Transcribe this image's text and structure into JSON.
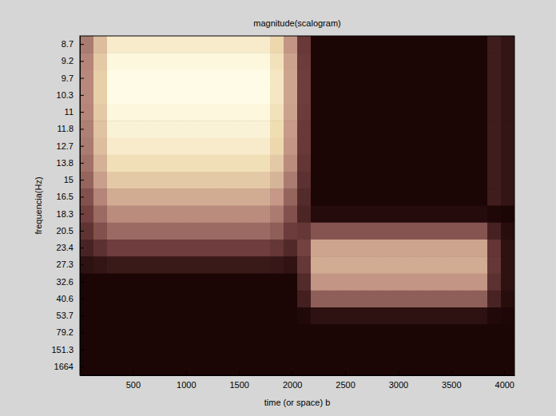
{
  "chart_data": {
    "type": "heatmap",
    "title": "magnitude(scalogram)",
    "x_label": "time (or space) b",
    "y_label": "frequencia(Hz)",
    "grid": false,
    "xlim": [
      0,
      4096
    ],
    "xticks": [
      500,
      1000,
      1500,
      2000,
      2500,
      3000,
      3500,
      4000
    ],
    "x": [
      0,
      128,
      256,
      384,
      512,
      640,
      768,
      896,
      1024,
      1152,
      1280,
      1408,
      1536,
      1664,
      1792,
      1920,
      2048,
      2176,
      2304,
      2432,
      2560,
      2688,
      2816,
      2944,
      3072,
      3200,
      3328,
      3456,
      3584,
      3712,
      3840,
      3968,
      4096
    ],
    "y": [
      8.7,
      9.2,
      9.7,
      10.3,
      11,
      11.8,
      12.7,
      13.8,
      15,
      16.5,
      18.3,
      20.5,
      23.4,
      27.3,
      32.6,
      40.6,
      53.7,
      79.2,
      151.3,
      1664
    ],
    "z": [
      [
        0.47,
        0.68,
        0.85,
        0.85,
        0.85,
        0.85,
        0.85,
        0.85,
        0.85,
        0.85,
        0.85,
        0.85,
        0.85,
        0.85,
        0.77,
        0.55,
        0.26,
        0,
        0,
        0,
        0,
        0,
        0,
        0,
        0,
        0,
        0,
        0,
        0,
        0,
        0.12,
        0.08
      ],
      [
        0.5,
        0.72,
        0.9,
        0.9,
        0.9,
        0.9,
        0.9,
        0.9,
        0.9,
        0.9,
        0.9,
        0.9,
        0.9,
        0.9,
        0.81,
        0.59,
        0.27,
        0,
        0,
        0,
        0,
        0,
        0,
        0,
        0,
        0,
        0,
        0,
        0,
        0,
        0.12,
        0.08
      ],
      [
        0.51,
        0.74,
        0.92,
        0.92,
        0.92,
        0.92,
        0.92,
        0.92,
        0.92,
        0.92,
        0.92,
        0.92,
        0.92,
        0.92,
        0.83,
        0.6,
        0.28,
        0,
        0,
        0,
        0,
        0,
        0,
        0,
        0,
        0,
        0,
        0,
        0,
        0,
        0.12,
        0.08
      ],
      [
        0.51,
        0.74,
        0.92,
        0.92,
        0.92,
        0.92,
        0.92,
        0.92,
        0.92,
        0.92,
        0.92,
        0.92,
        0.92,
        0.92,
        0.83,
        0.6,
        0.28,
        0,
        0,
        0,
        0,
        0,
        0,
        0,
        0,
        0,
        0,
        0,
        0,
        0,
        0.12,
        0.08
      ],
      [
        0.5,
        0.72,
        0.9,
        0.9,
        0.9,
        0.9,
        0.9,
        0.9,
        0.9,
        0.9,
        0.9,
        0.9,
        0.9,
        0.9,
        0.81,
        0.59,
        0.27,
        0,
        0,
        0,
        0,
        0,
        0,
        0,
        0,
        0,
        0,
        0,
        0,
        0,
        0.12,
        0.08
      ],
      [
        0.48,
        0.7,
        0.88,
        0.88,
        0.88,
        0.88,
        0.88,
        0.88,
        0.88,
        0.88,
        0.88,
        0.88,
        0.88,
        0.88,
        0.79,
        0.57,
        0.26,
        0,
        0,
        0,
        0,
        0,
        0,
        0,
        0,
        0,
        0,
        0,
        0,
        0,
        0.12,
        0.08
      ],
      [
        0.47,
        0.68,
        0.85,
        0.85,
        0.85,
        0.85,
        0.85,
        0.85,
        0.85,
        0.85,
        0.85,
        0.85,
        0.85,
        0.85,
        0.77,
        0.55,
        0.26,
        0,
        0,
        0,
        0,
        0,
        0,
        0,
        0,
        0,
        0,
        0,
        0,
        0,
        0.12,
        0.08
      ],
      [
        0.44,
        0.64,
        0.8,
        0.8,
        0.8,
        0.8,
        0.8,
        0.8,
        0.8,
        0.8,
        0.8,
        0.8,
        0.8,
        0.8,
        0.72,
        0.52,
        0.24,
        0,
        0,
        0,
        0,
        0,
        0,
        0,
        0,
        0,
        0,
        0,
        0,
        0,
        0.12,
        0.08
      ],
      [
        0.4,
        0.58,
        0.72,
        0.72,
        0.72,
        0.72,
        0.72,
        0.72,
        0.72,
        0.72,
        0.72,
        0.72,
        0.72,
        0.72,
        0.65,
        0.47,
        0.22,
        0,
        0,
        0,
        0,
        0,
        0,
        0,
        0,
        0,
        0,
        0,
        0,
        0,
        0.12,
        0.08
      ],
      [
        0.34,
        0.5,
        0.62,
        0.62,
        0.62,
        0.62,
        0.62,
        0.62,
        0.62,
        0.62,
        0.62,
        0.62,
        0.62,
        0.62,
        0.56,
        0.4,
        0.19,
        0,
        0,
        0,
        0,
        0,
        0,
        0,
        0,
        0,
        0,
        0,
        0,
        0,
        0.12,
        0.08
      ],
      [
        0.29,
        0.42,
        0.52,
        0.52,
        0.52,
        0.52,
        0.52,
        0.52,
        0.52,
        0.52,
        0.52,
        0.52,
        0.52,
        0.52,
        0.47,
        0.34,
        0.16,
        0.03,
        0.03,
        0.03,
        0.03,
        0.03,
        0.03,
        0.03,
        0.03,
        0.03,
        0.03,
        0.03,
        0.03,
        0.03,
        0.01,
        0
      ],
      [
        0.23,
        0.34,
        0.42,
        0.42,
        0.42,
        0.42,
        0.42,
        0.42,
        0.42,
        0.42,
        0.42,
        0.42,
        0.42,
        0.42,
        0.38,
        0.27,
        0.25,
        0.35,
        0.35,
        0.35,
        0.35,
        0.35,
        0.35,
        0.35,
        0.35,
        0.35,
        0.35,
        0.35,
        0.35,
        0.35,
        0.14,
        0.04
      ],
      [
        0.15,
        0.22,
        0.28,
        0.28,
        0.28,
        0.28,
        0.28,
        0.28,
        0.28,
        0.28,
        0.28,
        0.28,
        0.28,
        0.28,
        0.25,
        0.18,
        0.29,
        0.6,
        0.6,
        0.6,
        0.6,
        0.6,
        0.6,
        0.6,
        0.6,
        0.6,
        0.6,
        0.6,
        0.6,
        0.6,
        0.24,
        0.06
      ],
      [
        0.06,
        0.08,
        0.1,
        0.1,
        0.1,
        0.1,
        0.1,
        0.1,
        0.1,
        0.1,
        0.1,
        0.1,
        0.1,
        0.1,
        0.09,
        0.07,
        0.25,
        0.62,
        0.62,
        0.62,
        0.62,
        0.62,
        0.62,
        0.62,
        0.62,
        0.62,
        0.62,
        0.62,
        0.62,
        0.62,
        0.25,
        0.06
      ],
      [
        0,
        0,
        0,
        0,
        0,
        0,
        0,
        0,
        0,
        0,
        0,
        0,
        0,
        0,
        0,
        0,
        0.19,
        0.55,
        0.55,
        0.55,
        0.55,
        0.55,
        0.55,
        0.55,
        0.55,
        0.55,
        0.55,
        0.55,
        0.55,
        0.55,
        0.22,
        0.06
      ],
      [
        0,
        0,
        0,
        0,
        0,
        0,
        0,
        0,
        0,
        0,
        0,
        0,
        0,
        0,
        0,
        0,
        0.13,
        0.38,
        0.38,
        0.38,
        0.38,
        0.38,
        0.38,
        0.38,
        0.38,
        0.38,
        0.38,
        0.38,
        0.38,
        0.38,
        0.15,
        0.04
      ],
      [
        0,
        0,
        0,
        0,
        0,
        0,
        0,
        0,
        0,
        0,
        0,
        0,
        0,
        0,
        0,
        0,
        0.02,
        0.06,
        0.06,
        0.06,
        0.06,
        0.06,
        0.06,
        0.06,
        0.06,
        0.06,
        0.06,
        0.06,
        0.06,
        0.06,
        0.02,
        0.01
      ],
      [
        0,
        0,
        0,
        0,
        0,
        0,
        0,
        0,
        0,
        0,
        0,
        0,
        0,
        0,
        0,
        0,
        0,
        0,
        0,
        0,
        0,
        0,
        0,
        0,
        0,
        0,
        0,
        0,
        0,
        0,
        0,
        0
      ],
      [
        0,
        0,
        0,
        0,
        0,
        0,
        0,
        0,
        0,
        0,
        0,
        0,
        0,
        0,
        0,
        0,
        0,
        0,
        0,
        0,
        0,
        0,
        0,
        0,
        0,
        0,
        0,
        0,
        0,
        0,
        0,
        0
      ],
      [
        0,
        0,
        0,
        0,
        0,
        0,
        0,
        0,
        0,
        0,
        0,
        0,
        0,
        0,
        0,
        0,
        0,
        0,
        0,
        0,
        0,
        0,
        0,
        0,
        0,
        0,
        0,
        0,
        0,
        0,
        0,
        0
      ]
    ]
  }
}
